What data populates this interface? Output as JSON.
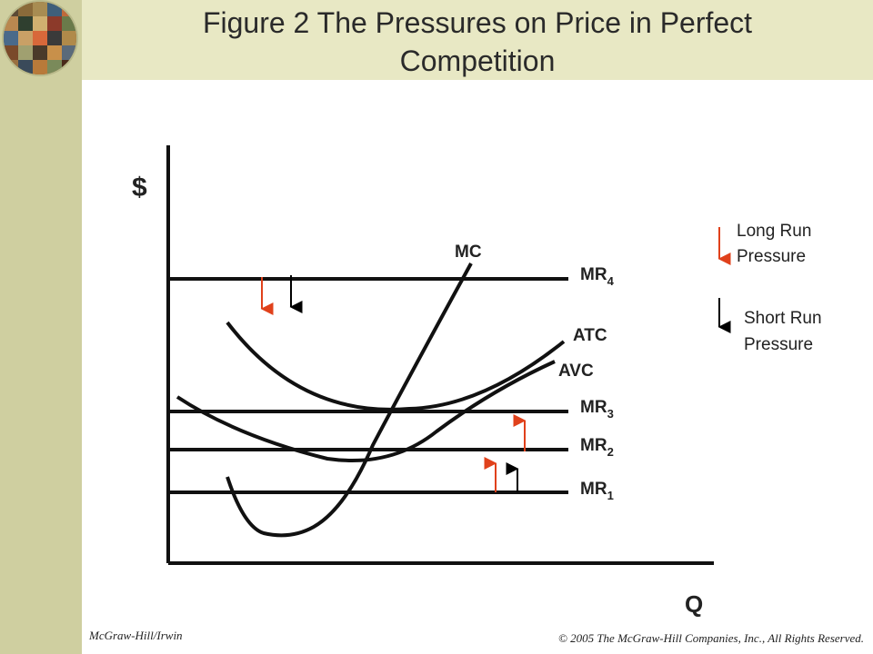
{
  "header": {
    "title_line1": "Figure 2 The Pressures on Price in Perfect",
    "title_line2": "Competition"
  },
  "logo": {
    "icon": "people-grid-globe-icon"
  },
  "axes": {
    "y_label": "$",
    "x_label": "Q"
  },
  "curves": {
    "mc": "MC",
    "atc": "ATC",
    "avc": "AVC",
    "mr4": {
      "base": "MR",
      "sub": "4"
    },
    "mr3": {
      "base": "MR",
      "sub": "3"
    },
    "mr2": {
      "base": "MR",
      "sub": "2"
    },
    "mr1": {
      "base": "MR",
      "sub": "1"
    }
  },
  "legend": {
    "long_run_line1": "Long Run",
    "long_run_line2": "Pressure",
    "short_run_line1": "Short Run",
    "short_run_line2": "Pressure"
  },
  "colors": {
    "long_run_arrow": "#e0411b",
    "short_run_arrow": "#000000",
    "curve": "#111111"
  },
  "footer": {
    "publisher": "McGraw-Hill/Irwin",
    "copyright": "© 2005 The McGraw-Hill Companies, Inc., All Rights Reserved."
  }
}
